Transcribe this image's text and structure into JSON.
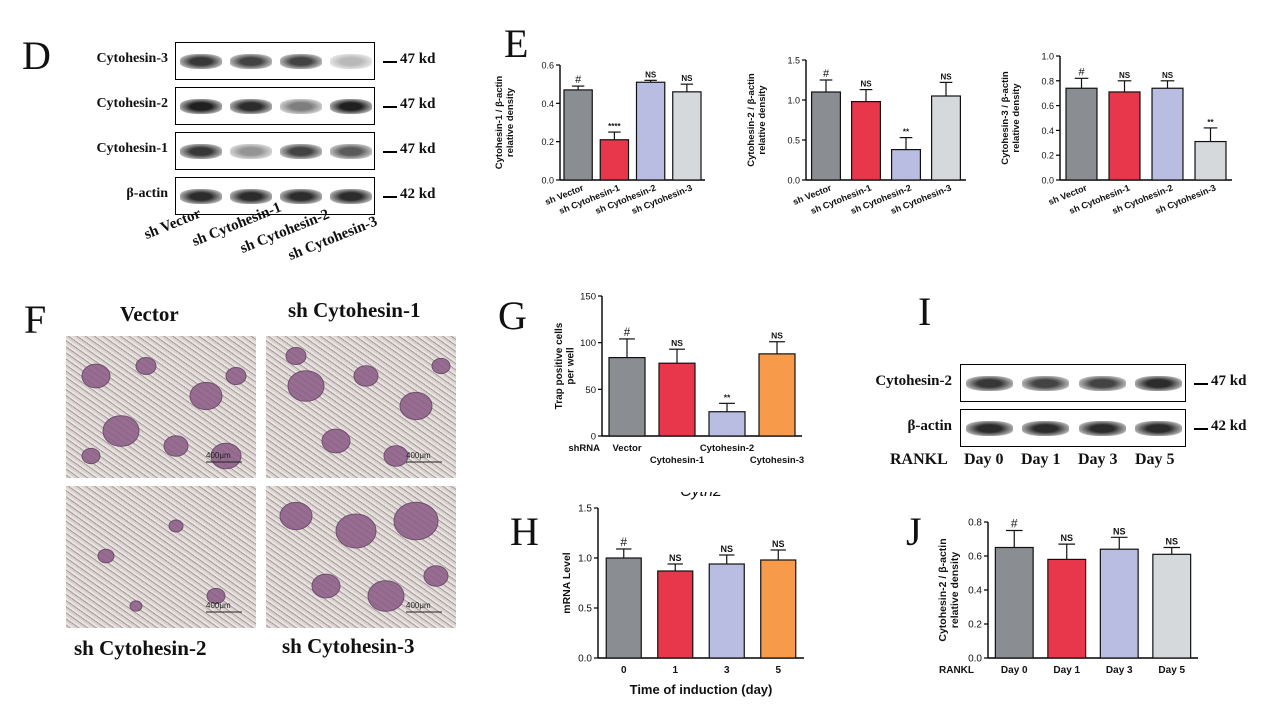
{
  "panel_labels": {
    "D": "D",
    "E": "E",
    "F": "F",
    "G": "G",
    "H": "H",
    "I": "I",
    "J": "J"
  },
  "blot_d": {
    "rows": [
      {
        "label": "Cytohesin-3",
        "kd": "47 kd",
        "intensity": [
          0.85,
          0.8,
          0.8,
          0.3
        ]
      },
      {
        "label": "Cytohesin-2",
        "kd": "47 kd",
        "intensity": [
          0.95,
          0.9,
          0.55,
          0.95
        ]
      },
      {
        "label": "Cytohesin-1",
        "kd": "47 kd",
        "intensity": [
          0.85,
          0.45,
          0.8,
          0.7
        ]
      },
      {
        "label": "β-actin",
        "kd": "42 kd",
        "intensity": [
          0.9,
          0.9,
          0.9,
          0.9
        ]
      }
    ],
    "lanes": [
      "sh Vector",
      "sh Cytohesin-1",
      "sh Cytohesin-2",
      "sh Cytohesin-3"
    ]
  },
  "micro_f": {
    "labels": [
      "Vector",
      "sh Cytohesin-1",
      "sh Cytohesin-2",
      "sh Cytohesin-3"
    ],
    "scale": "400μm"
  },
  "blot_i": {
    "rows": [
      {
        "label": "Cytohesin-2",
        "kd": "47 kd",
        "intensity": [
          0.85,
          0.8,
          0.8,
          0.9
        ]
      },
      {
        "label": "β-actin",
        "kd": "42 kd",
        "intensity": [
          0.9,
          0.9,
          0.9,
          0.9
        ]
      }
    ],
    "row_label": "RANKL",
    "lanes": [
      "Day 0",
      "Day 1",
      "Day 3",
      "Day 5"
    ]
  },
  "chart_data": [
    {
      "id": "E1",
      "type": "bar",
      "categories": [
        "sh Vector",
        "sh Cytohesin-1",
        "sh Cytohesin-2",
        "sh Cytohesin-3"
      ],
      "values": [
        0.47,
        0.21,
        0.51,
        0.46
      ],
      "errors": [
        0.02,
        0.04,
        0.01,
        0.04
      ],
      "annotations": [
        "#",
        "****",
        "NS",
        "NS"
      ],
      "ylabel": "Cytohesin-1 / β-actin relative density",
      "ylim": [
        0,
        0.6
      ],
      "yticks": [
        "0.0",
        "0.2",
        "0.4",
        "0.6"
      ],
      "colors": [
        "#8a8d92",
        "#e8374b",
        "#b9bde2",
        "#d6d9dc"
      ]
    },
    {
      "id": "E2",
      "type": "bar",
      "categories": [
        "sh Vector",
        "sh Cytohesin-1",
        "sh Cytohesin-2",
        "sh Cytohesin-3"
      ],
      "values": [
        1.1,
        0.98,
        0.38,
        1.05
      ],
      "errors": [
        0.15,
        0.15,
        0.15,
        0.17
      ],
      "annotations": [
        "#",
        "NS",
        "**",
        "NS"
      ],
      "ylabel": "Cytohesin-2 / β-actin relative density",
      "ylim": [
        0,
        1.5
      ],
      "yticks": [
        "0.0",
        "0.5",
        "1.0",
        "1.5"
      ],
      "colors": [
        "#8a8d92",
        "#e8374b",
        "#b9bde2",
        "#d6d9dc"
      ]
    },
    {
      "id": "E3",
      "type": "bar",
      "categories": [
        "sh Vector",
        "sh Cytohesin-1",
        "sh Cytohesin-2",
        "sh Cytohesin-3"
      ],
      "values": [
        0.74,
        0.71,
        0.74,
        0.31
      ],
      "errors": [
        0.08,
        0.09,
        0.06,
        0.11
      ],
      "annotations": [
        "#",
        "NS",
        "NS",
        "**"
      ],
      "ylabel": "Cytohesin-3 / β-actin relative density",
      "ylim": [
        0,
        1.0
      ],
      "yticks": [
        "0.0",
        "0.2",
        "0.4",
        "0.6",
        "0.8",
        "1.0"
      ],
      "colors": [
        "#8a8d92",
        "#e8374b",
        "#b9bde2",
        "#d6d9dc"
      ]
    },
    {
      "id": "G",
      "type": "bar",
      "categories": [
        "Vector",
        "Cytohesin-1",
        "Cytohesin-2",
        "Cytohesin-3"
      ],
      "values": [
        84,
        78,
        26,
        88
      ],
      "errors": [
        20,
        15,
        9,
        13
      ],
      "annotations": [
        "#",
        "NS",
        "**",
        "NS"
      ],
      "ylabel": "Trap positive cells per well",
      "xprefix": "shRNA",
      "ylim": [
        0,
        150
      ],
      "yticks": [
        "0",
        "50",
        "100",
        "150"
      ],
      "colors": [
        "#8a8d92",
        "#e8374b",
        "#b9bde2",
        "#f79a4a"
      ]
    },
    {
      "id": "H",
      "type": "bar",
      "title": "Cyth2",
      "categories": [
        "0",
        "1",
        "3",
        "5"
      ],
      "values": [
        1.0,
        0.87,
        0.94,
        0.98
      ],
      "errors": [
        0.09,
        0.07,
        0.09,
        0.1
      ],
      "annotations": [
        "#",
        "NS",
        "NS",
        "NS"
      ],
      "ylabel": "mRNA Level",
      "xlabel": "Time of induction  (day)",
      "ylim": [
        0,
        1.5
      ],
      "yticks": [
        "0.0",
        "0.5",
        "1.0",
        "1.5"
      ],
      "colors": [
        "#8a8d92",
        "#e8374b",
        "#b9bde2",
        "#f79a4a"
      ]
    },
    {
      "id": "J",
      "type": "bar",
      "categories": [
        "Day 0",
        "Day 1",
        "Day 3",
        "Day 5"
      ],
      "values": [
        0.65,
        0.58,
        0.64,
        0.61
      ],
      "errors": [
        0.1,
        0.09,
        0.07,
        0.04
      ],
      "annotations": [
        "#",
        "NS",
        "NS",
        "NS"
      ],
      "ylabel": "Cytohesin-2 / β-actin relative density",
      "xprefix": "RANKL",
      "ylim": [
        0,
        0.8
      ],
      "yticks": [
        "0.0",
        "0.2",
        "0.4",
        "0.6",
        "0.8"
      ],
      "colors": [
        "#8a8d92",
        "#e8374b",
        "#b9bde2",
        "#d6d9dc"
      ]
    }
  ]
}
